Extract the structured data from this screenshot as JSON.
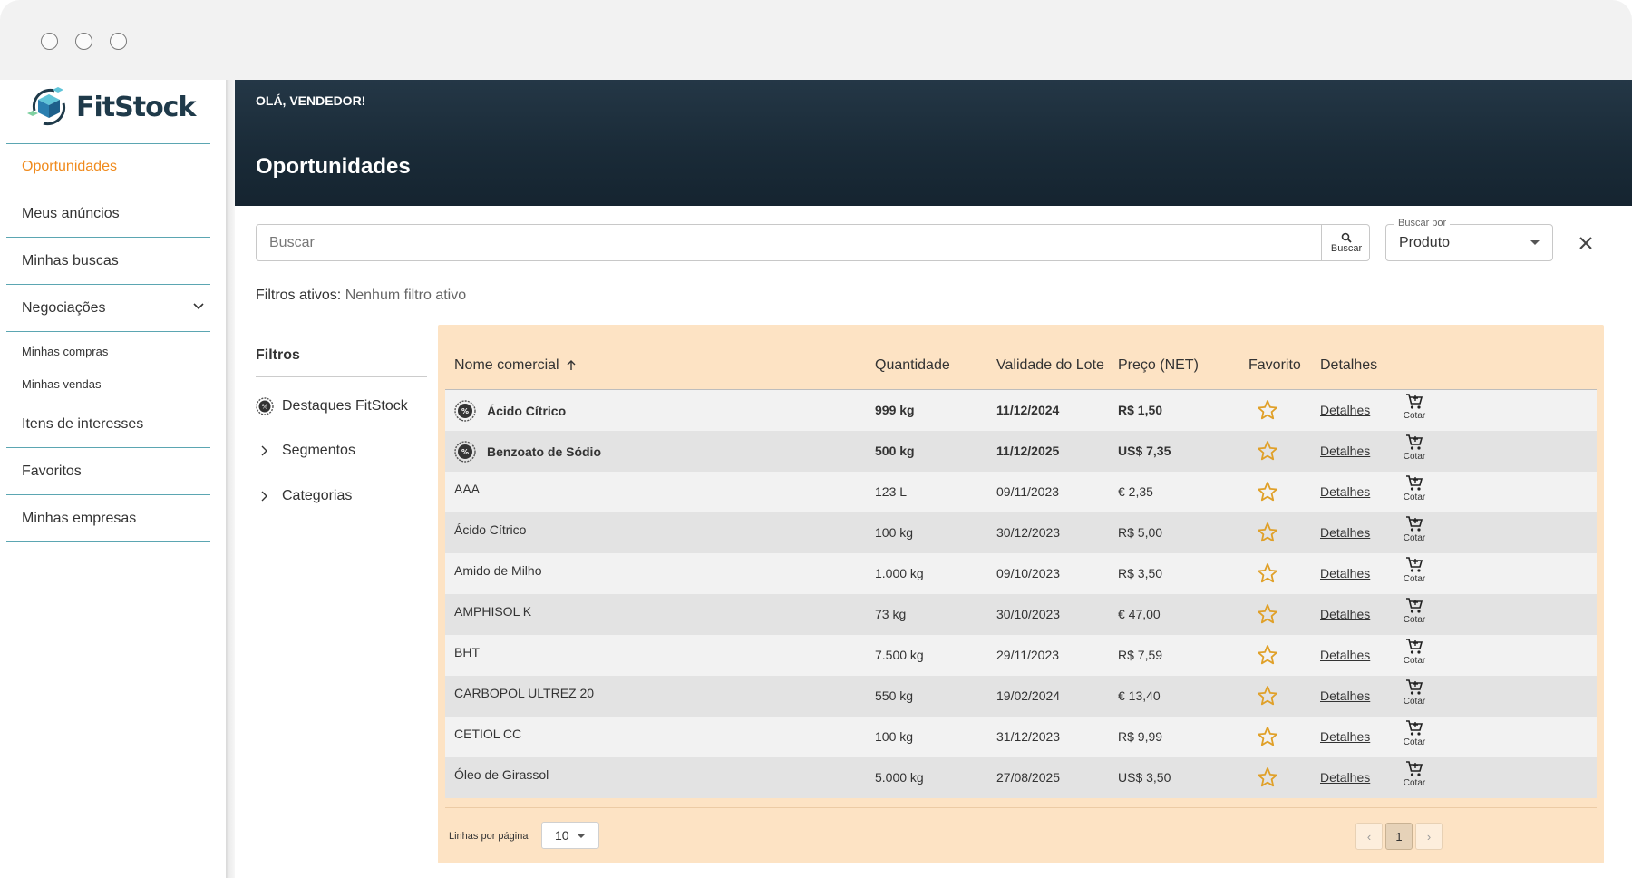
{
  "app": {
    "logo_text": "FitStock"
  },
  "sidebar": {
    "items": [
      {
        "label": "Oportunidades",
        "active": true
      },
      {
        "label": "Meus anúncios"
      },
      {
        "label": "Minhas buscas"
      },
      {
        "label": "Negociações",
        "expandable": true
      },
      {
        "label": "Minhas compras",
        "sub": true
      },
      {
        "label": "Minhas vendas",
        "sub": true
      },
      {
        "label": "Itens de interesses"
      },
      {
        "label": "Favoritos"
      },
      {
        "label": "Minhas empresas"
      }
    ]
  },
  "header": {
    "greeting": "OLÁ, VENDEDOR!",
    "title": "Oportunidades"
  },
  "search": {
    "placeholder": "Buscar",
    "button_label": "Buscar",
    "select_label": "Buscar por",
    "select_value": "Produto"
  },
  "active_filters": {
    "label": "Filtros ativos:",
    "value": "Nenhum filtro ativo"
  },
  "filters": {
    "title": "Filtros",
    "items": [
      {
        "label": "Destaques FitStock",
        "icon": "badge-icon"
      },
      {
        "label": "Segmentos",
        "icon": "chevron-right-icon"
      },
      {
        "label": "Categorias",
        "icon": "chevron-right-icon"
      }
    ]
  },
  "table": {
    "columns": [
      "Nome comercial",
      "Quantidade",
      "Validade do Lote",
      "Preço (NET)",
      "Favorito",
      "Detalhes"
    ],
    "detail_link": "Detalhes",
    "quote_label": "Cotar",
    "rows": [
      {
        "name": "Ácido Cítrico",
        "qty": "999 kg",
        "validity": "11/12/2024",
        "price": "R$ 1,50",
        "highlight": true
      },
      {
        "name": "Benzoato de Sódio",
        "qty": "500 kg",
        "validity": "11/12/2025",
        "price": "US$ 7,35",
        "highlight": true
      },
      {
        "name": "AAA",
        "qty": "123 L",
        "validity": "09/11/2023",
        "price": "€ 2,35"
      },
      {
        "name": "Ácido Cítrico",
        "qty": "100 kg",
        "validity": "30/12/2023",
        "price": "R$ 5,00"
      },
      {
        "name": "Amido de Milho",
        "qty": "1.000 kg",
        "validity": "09/10/2023",
        "price": "R$ 3,50"
      },
      {
        "name": "AMPHISOL K",
        "qty": "73 kg",
        "validity": "30/10/2023",
        "price": "€ 47,00"
      },
      {
        "name": "BHT",
        "qty": "7.500 kg",
        "validity": "29/11/2023",
        "price": "R$ 7,59"
      },
      {
        "name": "CARBOPOL ULTREZ 20",
        "qty": "550 kg",
        "validity": "19/02/2024",
        "price": "€ 13,40"
      },
      {
        "name": "CETIOL CC",
        "qty": "100 kg",
        "validity": "31/12/2023",
        "price": "R$ 9,99"
      },
      {
        "name": "Óleo de Girassol",
        "qty": "5.000 kg",
        "validity": "27/08/2025",
        "price": "US$ 3,50"
      }
    ]
  },
  "pagination": {
    "rows_per_page_label": "Linhas por página",
    "rows_per_page": "10",
    "current_page": "1",
    "prev": "‹",
    "next": "›"
  },
  "colors": {
    "accent": "#f08a1c",
    "divider": "#5ba6b2",
    "header_bg": "#1a2b38",
    "table_panel": "#fde3c4",
    "star": "#e0a028"
  }
}
